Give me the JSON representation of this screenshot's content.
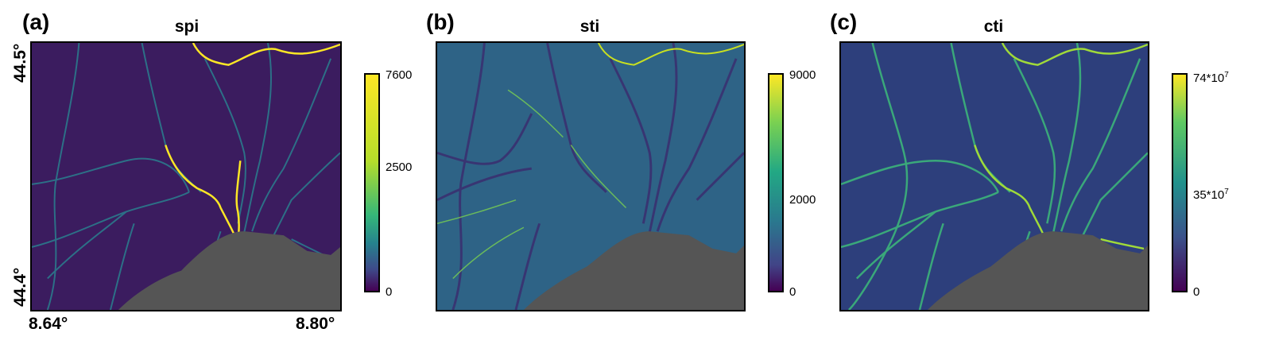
{
  "panels": [
    {
      "letter": "(a)",
      "title": "spi",
      "colorbar": {
        "ticks": [
          "7600",
          "2500",
          "0"
        ]
      },
      "bg_color": "#3b1c5f",
      "stream_color": "#2a7f8e",
      "hot_color": "#fde725"
    },
    {
      "letter": "(b)",
      "title": "sti",
      "colorbar": {
        "ticks": [
          "9000",
          "2000",
          "0"
        ]
      },
      "bg_color": "#2e6386",
      "stream_color": "#3b2a6e",
      "hot_color": "#c8e020"
    },
    {
      "letter": "(c)",
      "title": "cti",
      "colorbar": {
        "ticks": [
          "74*10",
          "35*10",
          "0"
        ],
        "tick_exponent": "7"
      },
      "bg_color": "#2d3f7c",
      "stream_color": "#3cb47a",
      "hot_color": "#a0da39"
    }
  ],
  "axes": {
    "lat_top": "44.5°",
    "lat_bottom": "44.4°",
    "lon_left": "8.64°",
    "lon_right": "8.80°"
  },
  "sea_color": "#555555"
}
